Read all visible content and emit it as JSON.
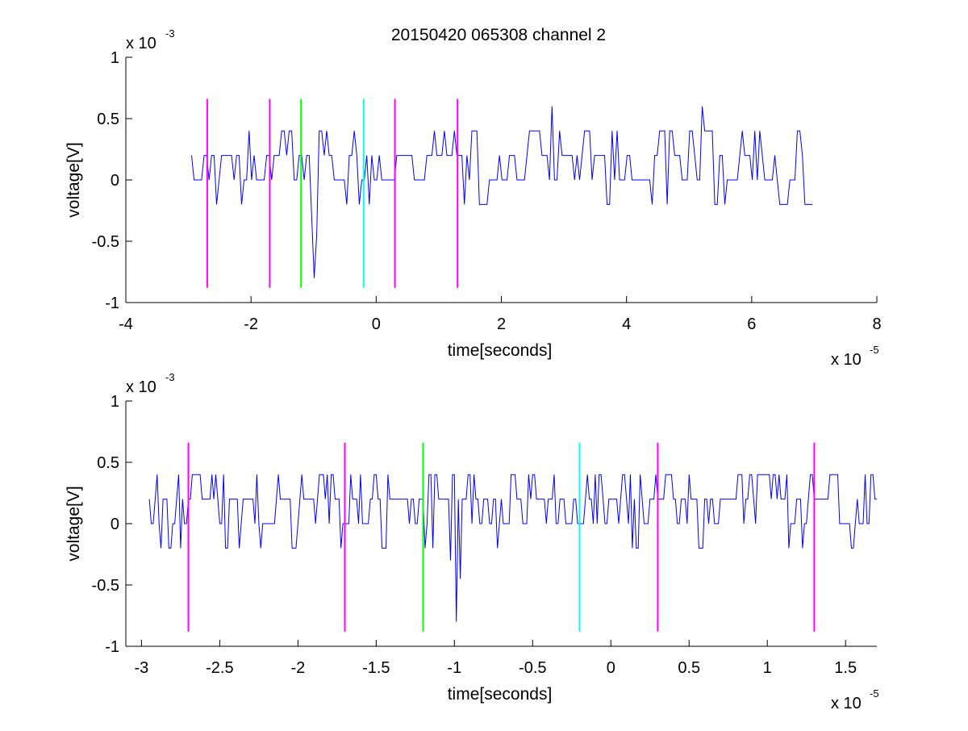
{
  "title": "20150420 065308 channel 2",
  "chart_data": [
    {
      "type": "line",
      "xlabel": "time[seconds]",
      "ylabel": "voltage[V]",
      "x_multiplier": {
        "base": "x 10",
        "exponent": "-5"
      },
      "y_multiplier": {
        "base": "x 10",
        "exponent": "-3"
      },
      "xlim": [
        -4,
        8
      ],
      "ylim": [
        -1,
        1
      ],
      "xticks": [
        -4,
        -2,
        0,
        2,
        4,
        6,
        8
      ],
      "xtick_labels": [
        "-4",
        "-2",
        "0",
        "2",
        "4",
        "6",
        "8"
      ],
      "yticks": [
        -1,
        -0.5,
        0,
        0.5,
        1
      ],
      "ytick_labels": [
        "-1",
        "-0.5",
        "0",
        "0.5",
        "1"
      ],
      "grid": false,
      "signal": {
        "color": "#0000ff",
        "x_start": -2.95,
        "x_end": 7.0,
        "step": 0.04,
        "levels": [
          0,
          0.2,
          0.4
        ],
        "dips": [
          {
            "x": -0.99,
            "value": -0.8
          },
          {
            "x": -0.95,
            "value": -0.45
          },
          {
            "x": -1.03,
            "value": -0.3
          }
        ],
        "spikes": [
          {
            "x": 2.83,
            "value": 0.6
          },
          {
            "x": 5.23,
            "value": 0.6
          }
        ]
      },
      "markers": [
        {
          "x": -2.7,
          "color": "#ff00ff",
          "y_bottom": -0.88,
          "y_top": 0.66
        },
        {
          "x": -1.7,
          "color": "#ff00ff",
          "y_bottom": -0.88,
          "y_top": 0.66
        },
        {
          "x": -1.2,
          "color": "#00ff00",
          "y_bottom": -0.88,
          "y_top": 0.66
        },
        {
          "x": -0.2,
          "color": "#00ffff",
          "y_bottom": -0.88,
          "y_top": 0.66
        },
        {
          "x": 0.3,
          "color": "#ff00ff",
          "y_bottom": -0.88,
          "y_top": 0.66
        },
        {
          "x": 1.3,
          "color": "#ff00ff",
          "y_bottom": -0.88,
          "y_top": 0.66
        }
      ]
    },
    {
      "type": "line",
      "xlabel": "time[seconds]",
      "ylabel": "voltage[V]",
      "x_multiplier": {
        "base": "x 10",
        "exponent": "-5"
      },
      "y_multiplier": {
        "base": "x 10",
        "exponent": "-3"
      },
      "xlim": [
        -3.1,
        1.7
      ],
      "ylim": [
        -1,
        1
      ],
      "xticks": [
        -3,
        -2.5,
        -2,
        -1.5,
        -1,
        -0.5,
        0,
        0.5,
        1,
        1.5
      ],
      "xtick_labels": [
        "-3",
        "-2.5",
        "-2",
        "-1.5",
        "-1",
        "-0.5",
        "0",
        "0.5",
        "1",
        "1.5"
      ],
      "yticks": [
        -1,
        -0.5,
        0,
        0.5,
        1
      ],
      "ytick_labels": [
        "-1",
        "-0.5",
        "0",
        "0.5",
        "1"
      ],
      "grid": false,
      "signal": {
        "color": "#0000ff",
        "x_start": -2.95,
        "x_end": 1.7,
        "step": 0.0125,
        "levels": [
          0,
          0.2,
          0.4
        ],
        "dips": [
          {
            "x": -0.99,
            "value": -0.8
          },
          {
            "x": -0.96,
            "value": -0.45
          },
          {
            "x": -1.02,
            "value": -0.3
          }
        ],
        "spikes": []
      },
      "markers": [
        {
          "x": -2.7,
          "color": "#ff00ff",
          "y_bottom": -0.88,
          "y_top": 0.66
        },
        {
          "x": -1.7,
          "color": "#ff00ff",
          "y_bottom": -0.88,
          "y_top": 0.66
        },
        {
          "x": -1.2,
          "color": "#00ff00",
          "y_bottom": -0.88,
          "y_top": 0.66
        },
        {
          "x": -0.2,
          "color": "#00ffff",
          "y_bottom": -0.88,
          "y_top": 0.66
        },
        {
          "x": 0.3,
          "color": "#ff00ff",
          "y_bottom": -0.88,
          "y_top": 0.66
        },
        {
          "x": 1.3,
          "color": "#ff00ff",
          "y_bottom": -0.88,
          "y_top": 0.66
        }
      ]
    }
  ]
}
